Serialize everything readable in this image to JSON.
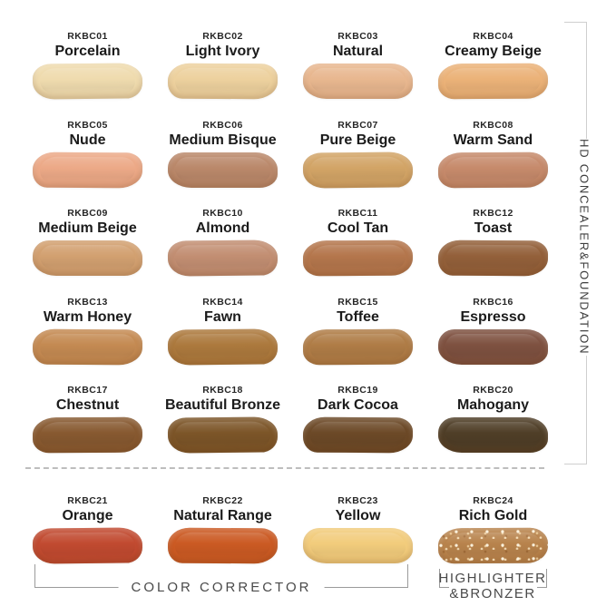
{
  "sections": {
    "hd_group_label": "HD CONCEALER&FOUNDATION",
    "color_corrector_label": "COLOR CORRECTOR",
    "highlighter_label_line1": "HIGHLIGHTER",
    "highlighter_label_line2": "&BRONZER"
  },
  "colors": {
    "background": "#ffffff",
    "label_text": "#1b1b1b",
    "bracket_gray": "#cfcfcf",
    "annotation_gray": "#4a4a4a",
    "dash_gray": "#bdbdbd"
  },
  "shades": [
    {
      "code": "RKBC01",
      "name": "Porcelain",
      "color": "#EFDBAE"
    },
    {
      "code": "RKBC02",
      "name": "Light Ivory",
      "color": "#EDD19E"
    },
    {
      "code": "RKBC03",
      "name": "Natural",
      "color": "#E8B78F"
    },
    {
      "code": "RKBC04",
      "name": "Creamy Beige",
      "color": "#EBB278"
    },
    {
      "code": "RKBC05",
      "name": "Nude",
      "color": "#ECA987"
    },
    {
      "code": "RKBC06",
      "name": "Medium Bisque",
      "color": "#BA886A"
    },
    {
      "code": "RKBC07",
      "name": "Pure Beige",
      "color": "#D2A466"
    },
    {
      "code": "RKBC08",
      "name": "Warm Sand",
      "color": "#C68A6B"
    },
    {
      "code": "RKBC09",
      "name": "Medium Beige",
      "color": "#D2A070"
    },
    {
      "code": "RKBC10",
      "name": "Almond",
      "color": "#C28E72"
    },
    {
      "code": "RKBC11",
      "name": "Cool Tan",
      "color": "#B4764C"
    },
    {
      "code": "RKBC12",
      "name": "Toast",
      "color": "#93603A"
    },
    {
      "code": "RKBC13",
      "name": "Warm Honey",
      "color": "#C48A52"
    },
    {
      "code": "RKBC14",
      "name": "Fawn",
      "color": "#AC793D"
    },
    {
      "code": "RKBC15",
      "name": "Toffee",
      "color": "#AF7C46"
    },
    {
      "code": "RKBC16",
      "name": "Espresso",
      "color": "#7E5140"
    },
    {
      "code": "RKBC17",
      "name": "Chestnut",
      "color": "#875930"
    },
    {
      "code": "RKBC18",
      "name": "Beautiful Bronze",
      "color": "#7C5528"
    },
    {
      "code": "RKBC19",
      "name": "Dark Cocoa",
      "color": "#6C4927"
    },
    {
      "code": "RKBC20",
      "name": "Mahogany",
      "color": "#4F3E27"
    },
    {
      "code": "RKBC21",
      "name": "Orange",
      "color": "#C14A30"
    },
    {
      "code": "RKBC22",
      "name": "Natural Range",
      "color": "#CB5A23"
    },
    {
      "code": "RKBC23",
      "name": "Yellow",
      "color": "#F2CC7C"
    },
    {
      "code": "RKBC24",
      "name": "Rich Gold",
      "color": "#B8834C"
    }
  ]
}
